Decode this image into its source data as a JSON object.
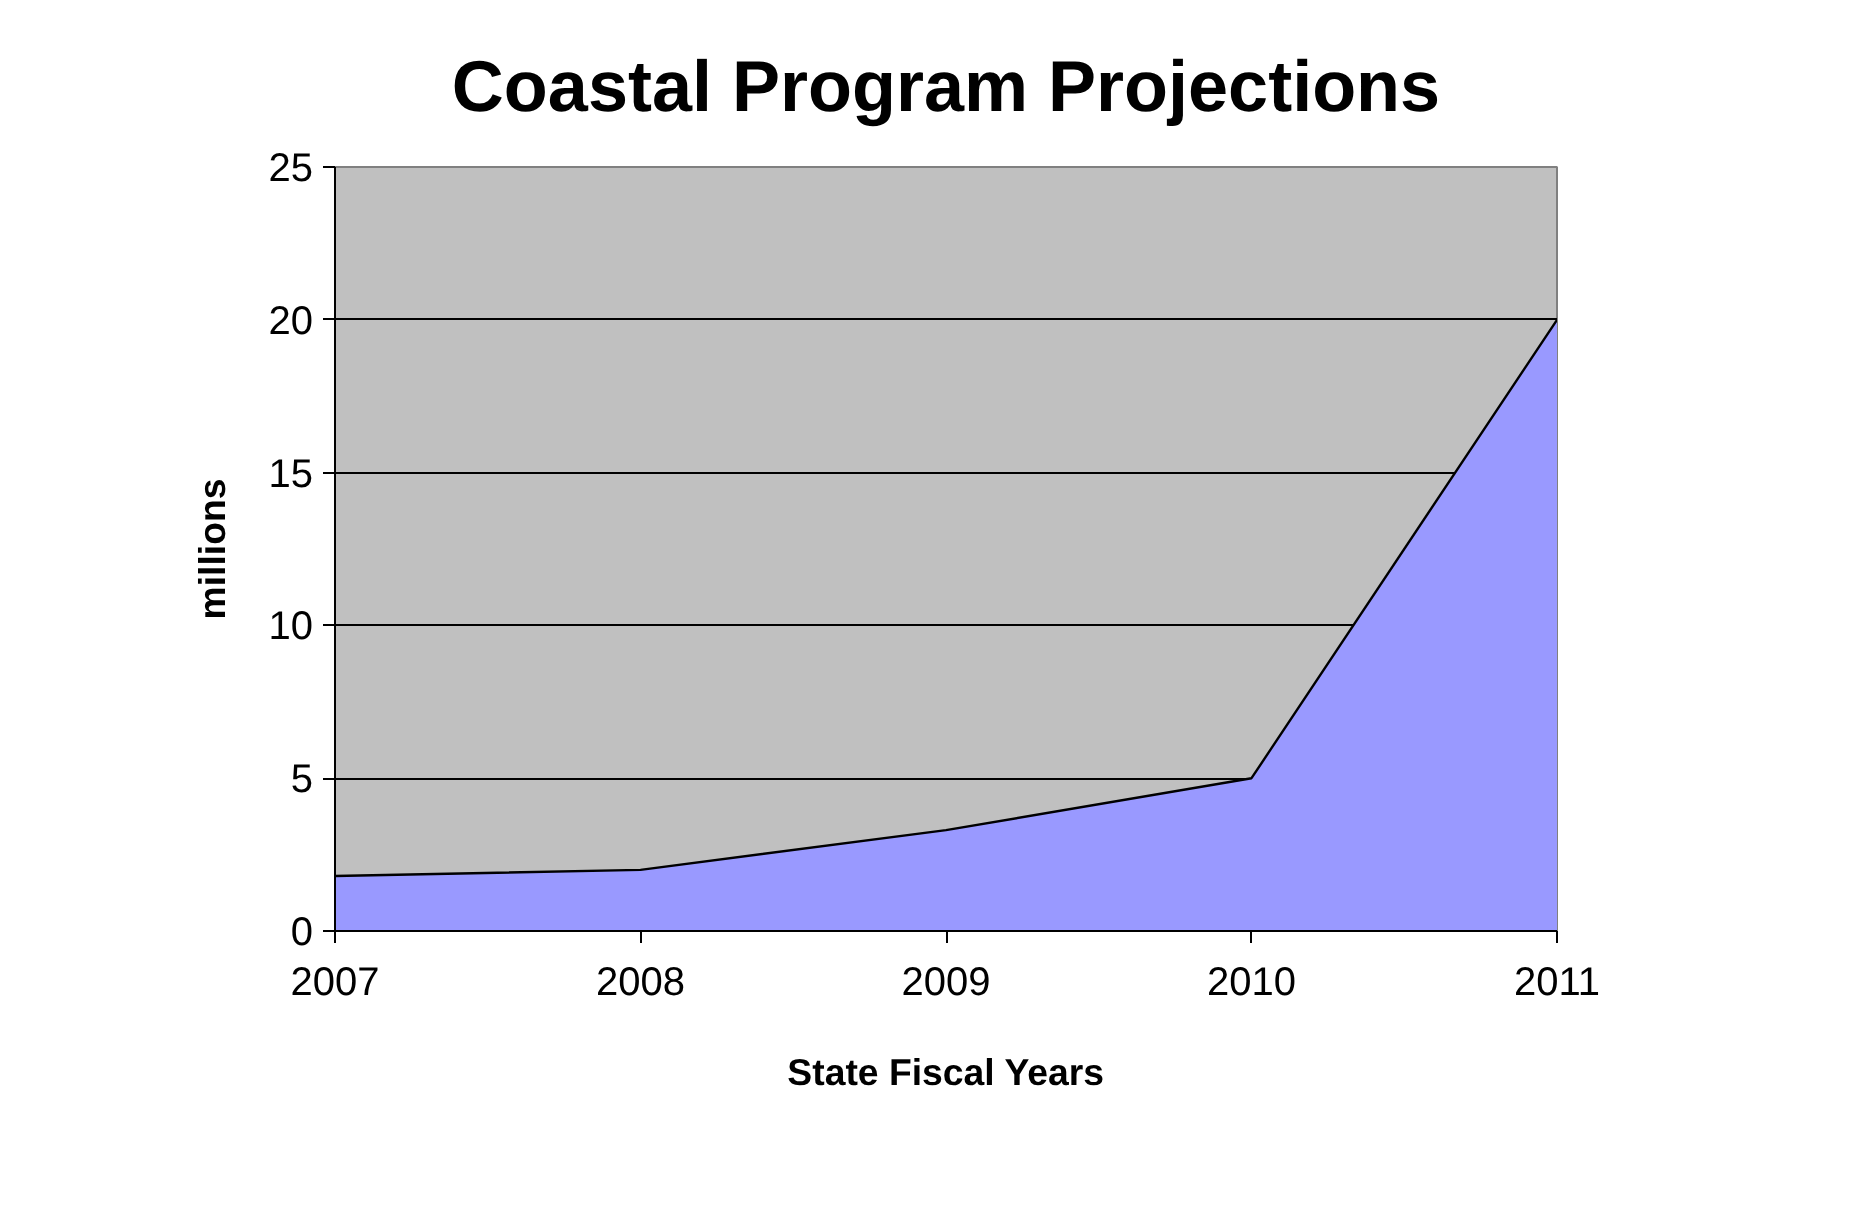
{
  "chart_data": {
    "type": "area",
    "title": "Coastal Program Projections",
    "xlabel": "State Fiscal Years",
    "ylabel": "millions",
    "categories": [
      "2007",
      "2008",
      "2009",
      "2010",
      "2011"
    ],
    "series": [
      {
        "color": "#9999ff",
        "values": [
          1.8,
          2.0,
          3.3,
          5.0,
          20.0
        ]
      }
    ],
    "ylim": [
      0,
      25
    ],
    "yticks": [
      0,
      5,
      10,
      15,
      20,
      25
    ],
    "grid": "y"
  }
}
